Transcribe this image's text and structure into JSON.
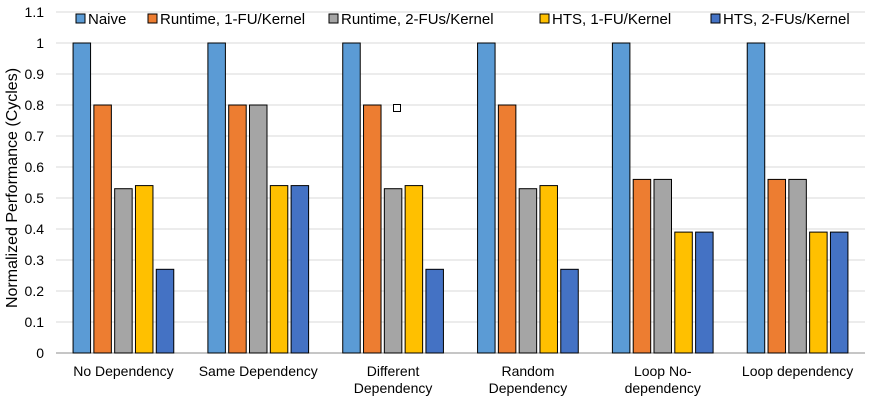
{
  "chart_data": {
    "type": "bar",
    "title": "",
    "xlabel": "",
    "ylabel": "Normalized Performance (Cycles)",
    "ylim": [
      0,
      1.1
    ],
    "yticks": [
      "0",
      "0.1",
      "0.2",
      "0.3",
      "0.4",
      "0.5",
      "0.6",
      "0.7",
      "0.8",
      "0.9",
      "1",
      "1.1"
    ],
    "grid": true,
    "legend_position": "top",
    "categories": [
      [
        "No Dependency"
      ],
      [
        "Same Dependency"
      ],
      [
        "Different",
        "Dependency"
      ],
      [
        "Random",
        "Dependency"
      ],
      [
        "Loop No-",
        "dependency"
      ],
      [
        "Loop dependency"
      ]
    ],
    "series": [
      {
        "name": "Naive",
        "color": "#5b9bd5",
        "values": [
          1.0,
          1.0,
          1.0,
          1.0,
          1.0,
          1.0
        ]
      },
      {
        "name": "Runtime, 1-FU/Kernel",
        "color": "#ed7d31",
        "values": [
          0.8,
          0.8,
          0.8,
          0.8,
          0.56,
          0.56
        ]
      },
      {
        "name": "Runtime, 2-FUs/Kernel",
        "color": "#a5a5a5",
        "values": [
          0.53,
          0.8,
          0.53,
          0.53,
          0.56,
          0.56
        ]
      },
      {
        "name": "HTS, 1-FU/Kernel",
        "color": "#ffc000",
        "values": [
          0.54,
          0.54,
          0.54,
          0.54,
          0.39,
          0.39
        ]
      },
      {
        "name": "HTS, 2-FUs/Kernel",
        "color": "#4472c4",
        "values": [
          0.27,
          0.54,
          0.27,
          0.27,
          0.39,
          0.39
        ]
      }
    ]
  }
}
